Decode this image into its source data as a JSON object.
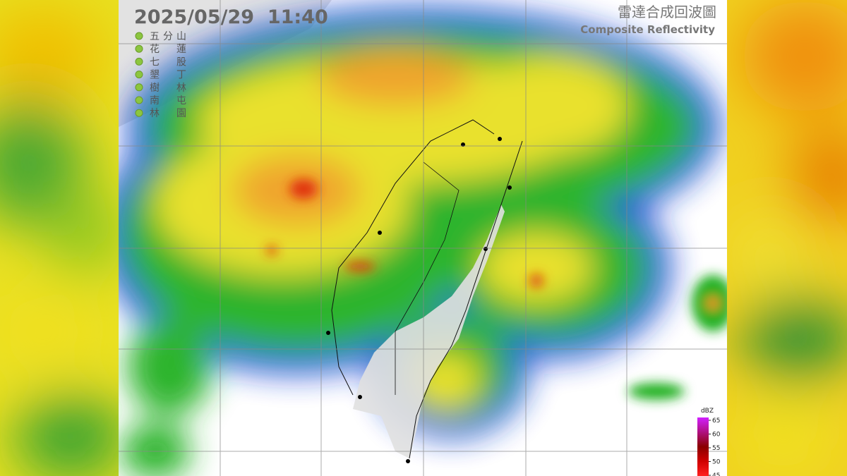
{
  "timestamp": "2025/05/29  11:40",
  "title": "雷達合成回波圖",
  "subtitle": "Composite Reflectivity",
  "stations": [
    "五分山",
    "花蓮",
    "七股",
    "墾丁",
    "樹林",
    "南屯",
    "林園"
  ],
  "legend": {
    "unit": "dBZ",
    "ticks": [
      65,
      60,
      55,
      50,
      45
    ]
  }
}
